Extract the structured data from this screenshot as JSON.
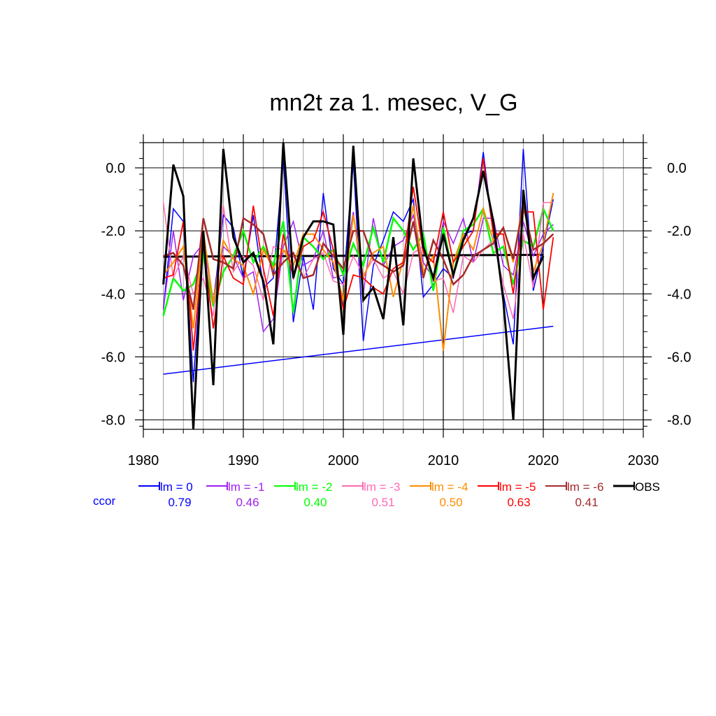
{
  "chart_data": {
    "type": "line",
    "title": "mn2t za 1. mesec, V_G",
    "xlabel": "",
    "ylabel": "",
    "xlim": [
      1980,
      2030
    ],
    "ylim": [
      -8.3,
      0.8
    ],
    "x_ticks": [
      1980,
      1990,
      2000,
      2010,
      2020,
      2030
    ],
    "x_tick_labels": [
      "1980",
      "1990",
      "2000",
      "2010",
      "2020",
      "2030"
    ],
    "y_ticks": [
      0.0,
      -2.0,
      -4.0,
      -6.0,
      -8.0
    ],
    "y_tick_labels": [
      "0.0",
      "-2.0",
      "-4.0",
      "-6.0",
      "-8.0"
    ],
    "grid": true,
    "x": [
      1982,
      1983,
      1984,
      1985,
      1986,
      1987,
      1988,
      1989,
      1990,
      1991,
      1992,
      1993,
      1994,
      1995,
      1996,
      1997,
      1998,
      1999,
      2000,
      2001,
      2002,
      2003,
      2004,
      2005,
      2006,
      2007,
      2008,
      2009,
      2010,
      2011,
      2012,
      2013,
      2014,
      2015,
      2016,
      2017,
      2018,
      2019,
      2020,
      2021
    ],
    "series": [
      {
        "name": "lm = 0",
        "color": "#0000ff",
        "width": 1.5,
        "values": [
          -4.5,
          -1.3,
          -1.7,
          -6.8,
          -2.2,
          -4.3,
          -1.5,
          -1.9,
          -3.5,
          -1.5,
          -3.8,
          -3.5,
          0.3,
          -4.9,
          -2.8,
          -4.5,
          -0.8,
          -3.2,
          -3.7,
          0.2,
          -5.5,
          -3.1,
          -2.3,
          -1.4,
          -1.7,
          -1.0,
          -4.1,
          -3.7,
          -3.2,
          -3.5,
          -2.1,
          -2.0,
          0.5,
          -2.1,
          -4.0,
          -5.6,
          0.6,
          -3.9,
          -2.5,
          -1.0
        ]
      },
      {
        "name": "lm = -1",
        "color": "#a020f0",
        "width": 1.5,
        "values": [
          -4.5,
          -2.0,
          -4.2,
          -2.8,
          -2.4,
          -4.2,
          -2.5,
          -2.8,
          -3.5,
          -3.3,
          -5.2,
          -4.8,
          -2.5,
          -1.7,
          -3.1,
          -2.9,
          -2.0,
          -3.5,
          -3.4,
          -1.4,
          -4.0,
          -1.6,
          -3.1,
          -2.5,
          -2.3,
          -1.5,
          -3.0,
          -3.5,
          -1.7,
          -2.4,
          -1.6,
          -3.0,
          -1.6,
          -1.6,
          -3.1,
          -3.4,
          -1.7,
          -2.8,
          -2.1,
          -1.8
        ]
      },
      {
        "name": "lm = -2",
        "color": "#00ff00",
        "width": 2.5,
        "values": [
          -4.7,
          -3.5,
          -3.9,
          -3.7,
          -2.8,
          -4.4,
          -3.3,
          -2.8,
          -2.0,
          -3.0,
          -2.5,
          -3.1,
          -1.7,
          -4.6,
          -2.2,
          -2.5,
          -2.9,
          -2.6,
          -3.4,
          -2.4,
          -3.1,
          -1.9,
          -3.0,
          -1.6,
          -2.0,
          -2.6,
          -2.1,
          -3.9,
          -1.9,
          -3.4,
          -2.0,
          -1.8,
          -1.3,
          -2.7,
          -2.5,
          -3.7,
          -2.3,
          -2.5,
          -1.3,
          -2.0
        ]
      },
      {
        "name": "lm = -3",
        "color": "#ff69b4",
        "width": 1.5,
        "values": [
          -1.1,
          -3.5,
          -2.8,
          -4.0,
          -3.5,
          -4.7,
          -1.2,
          -3.3,
          -2.8,
          -3.1,
          -4.2,
          -2.5,
          -2.6,
          -2.8,
          -3.5,
          -2.9,
          -2.7,
          -3.6,
          -3.7,
          -2.8,
          -3.4,
          -2.9,
          -3.5,
          -3.3,
          -4.0,
          -2.7,
          -2.5,
          -3.6,
          -3.5,
          -4.6,
          -2.8,
          -3.0,
          -2.6,
          -2.3,
          -3.7,
          -4.8,
          -2.1,
          -3.8,
          -1.1,
          -1.1
        ]
      },
      {
        "name": "lm = -4",
        "color": "#ff8c00",
        "width": 2.0,
        "values": [
          -3.4,
          -3.0,
          -2.5,
          -5.1,
          -2.0,
          -4.3,
          -2.3,
          -2.9,
          -3.1,
          -4.0,
          -2.6,
          -3.2,
          -2.6,
          -3.1,
          -2.1,
          -2.1,
          -2.6,
          -3.0,
          -4.2,
          -1.5,
          -3.5,
          -2.7,
          -2.5,
          -4.1,
          -2.9,
          -1.2,
          -3.3,
          -2.8,
          -5.8,
          -3.0,
          -2.1,
          -2.6,
          -1.3,
          -2.3,
          -1.9,
          -3.0,
          -1.0,
          -3.3,
          -2.4,
          -0.8
        ]
      },
      {
        "name": "lm = -5",
        "color": "#ff0000",
        "width": 1.8,
        "values": [
          -3.5,
          -3.4,
          -1.7,
          -5.8,
          -2.4,
          -5.1,
          -2.8,
          -3.5,
          -3.7,
          -1.2,
          -3.2,
          -4.7,
          -2.1,
          -3.5,
          -2.5,
          -2.3,
          -1.4,
          -2.6,
          -4.5,
          -3.4,
          -3.5,
          -3.8,
          -4.0,
          -3.2,
          -3.0,
          -0.6,
          -2.7,
          -3.0,
          -1.4,
          -3.0,
          -2.5,
          -2.0,
          0.3,
          -2.1,
          -2.1,
          -4.0,
          -1.4,
          -1.4,
          -4.5,
          -2.2
        ]
      },
      {
        "name": "lm = -6",
        "color": "#a52a2a",
        "width": 2.5,
        "values": [
          -2.8,
          -2.7,
          -3.1,
          -4.5,
          -1.6,
          -2.9,
          -3.0,
          -3.2,
          -1.6,
          -1.8,
          -2.1,
          -3.4,
          -3.0,
          -2.7,
          -3.5,
          -3.4,
          -2.4,
          -2.8,
          -3.2,
          -2.0,
          -2.0,
          -2.9,
          -3.1,
          -3.3,
          -3.1,
          -1.7,
          -3.5,
          -2.3,
          -2.9,
          -3.7,
          -3.4,
          -2.8,
          -2.6,
          -2.4,
          -1.9,
          -2.9,
          -1.2,
          -2.6,
          -2.4,
          -2.1
        ]
      },
      {
        "name": "OBS",
        "color": "#000000",
        "width": 3.0,
        "values": [
          -3.7,
          0.1,
          -0.9,
          -8.3,
          -2.0,
          -6.9,
          0.6,
          -2.2,
          -3.0,
          -2.7,
          -3.6,
          -5.6,
          0.8,
          -3.5,
          -2.2,
          -1.7,
          -1.7,
          -1.8,
          -5.3,
          0.7,
          -4.2,
          -3.8,
          -4.8,
          -2.2,
          -5.0,
          0.3,
          -2.5,
          -3.5,
          -2.1,
          -3.4,
          -2.3,
          -1.6,
          -0.1,
          -1.7,
          -4.2,
          -8.0,
          -0.7,
          -3.5,
          -2.8,
          null
        ]
      }
    ],
    "reference_lines": [
      {
        "name": "OBS mean",
        "color": "#000000",
        "width": 3.0,
        "x": [
          1982,
          2020
        ],
        "y": [
          -2.82,
          -2.76
        ]
      },
      {
        "name": "lm = 0 trend",
        "color": "#0000ff",
        "width": 1.5,
        "x": [
          1982,
          2021
        ],
        "y": [
          -6.55,
          -5.03
        ]
      }
    ],
    "legend": {
      "placement": "bottom",
      "ccor_label": "ccor",
      "ccor_label_color": "#0000ff",
      "items": [
        {
          "label": "lm = 0",
          "color": "#0000ff",
          "ccor": "0.79"
        },
        {
          "label": "lm = -1",
          "color": "#a020f0",
          "ccor": "0.46"
        },
        {
          "label": "lm = -2",
          "color": "#00ff00",
          "ccor": "0.40"
        },
        {
          "label": "lm = -3",
          "color": "#ff69b4",
          "ccor": "0.51"
        },
        {
          "label": "lm = -4",
          "color": "#ff8c00",
          "ccor": "0.50"
        },
        {
          "label": "lm = -5",
          "color": "#ff0000",
          "ccor": "0.63"
        },
        {
          "label": "lm = -6",
          "color": "#a52a2a",
          "ccor": "0.41"
        },
        {
          "label": "OBS",
          "color": "#000000",
          "ccor": ""
        }
      ]
    }
  }
}
